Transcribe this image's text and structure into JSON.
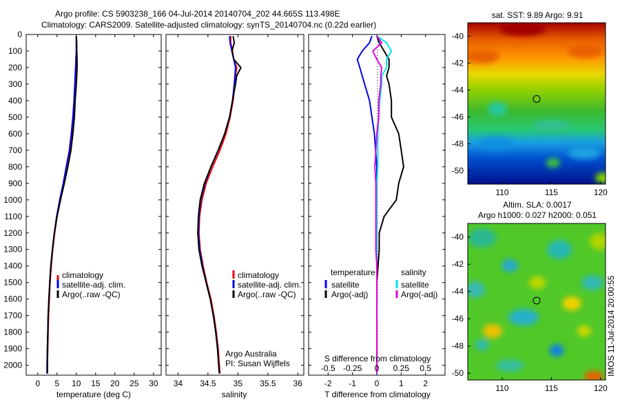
{
  "header": {
    "line1": "Argo profile: CS 5903238_166 04-Jul-2014 20140704_202 44.665S 113.498E",
    "line2": "Climatology: CARS2009. Satellite-adjusted climatology: synTS_20140704.nc (0.22d earlier)"
  },
  "side_label": "IMOS 11-Jul-2014 20:00:55",
  "colors": {
    "climatology": "#ee0000",
    "satellite": "#0000ee",
    "argo": "#000000",
    "satellite_salinity": "#00e5e5",
    "argo_salinity": "#e000e0"
  },
  "chart_data": [
    {
      "type": "line",
      "name": "temperature",
      "xlabel": "temperature (deg C)",
      "ylabel": "",
      "xlim": [
        -3,
        32
      ],
      "ylim": [
        2060,
        0
      ],
      "y_inverted": true,
      "xticks": [
        0,
        5,
        10,
        15,
        20,
        25,
        30
      ],
      "yticks": [
        0,
        100,
        200,
        300,
        400,
        500,
        600,
        700,
        800,
        900,
        1000,
        1100,
        1200,
        1300,
        1400,
        1500,
        1600,
        1700,
        1800,
        1900,
        2000
      ],
      "legend": [
        "climatology",
        "satellite-adj. clim.",
        "Argo(..raw -QC)"
      ],
      "legend_placement": "center-right",
      "depth": [
        10,
        50,
        100,
        150,
        200,
        250,
        300,
        400,
        500,
        600,
        700,
        800,
        900,
        1000,
        1100,
        1200,
        1300,
        1400,
        1500,
        1600,
        1700,
        1800,
        1900,
        2000,
        2050
      ],
      "series": [
        {
          "name": "climatology",
          "values": [
            10.0,
            10.0,
            10.0,
            9.9,
            9.9,
            9.8,
            9.7,
            9.5,
            9.3,
            8.9,
            8.4,
            7.6,
            6.8,
            5.9,
            5.0,
            4.4,
            3.9,
            3.5,
            3.2,
            3.0,
            2.8,
            2.7,
            2.6,
            2.5,
            2.5
          ]
        },
        {
          "name": "satellite-adj. clim.",
          "values": [
            10.0,
            10.0,
            10.0,
            9.9,
            9.8,
            9.7,
            9.6,
            9.4,
            9.1,
            8.7,
            8.2,
            7.4,
            6.6,
            5.7,
            4.9,
            4.3,
            3.8,
            3.4,
            3.1,
            2.9,
            2.7,
            2.6,
            2.5,
            2.4,
            2.4
          ]
        },
        {
          "name": "Argo(..raw -QC)",
          "values": [
            10.0,
            10.1,
            10.1,
            10.2,
            10.2,
            10.1,
            10.0,
            9.7,
            9.5,
            9.1,
            8.6,
            7.8,
            6.9,
            5.9,
            5.0,
            4.3,
            3.8,
            3.4,
            3.1,
            2.9,
            2.7,
            2.6,
            2.5,
            2.5,
            2.5
          ]
        }
      ]
    },
    {
      "type": "line",
      "name": "salinity",
      "xlabel": "salinity",
      "ylabel": "",
      "xlim": [
        33.8,
        36.1
      ],
      "ylim": [
        2060,
        0
      ],
      "y_inverted": true,
      "xticks": [
        34,
        34.5,
        35,
        35.5,
        36
      ],
      "legend": [
        "climatology",
        "satellite-adj. clim.",
        "Argo(..raw -QC)"
      ],
      "legend_placement": "center-right",
      "annotation": [
        "Argo Australia",
        "PI: Susan Wijffels"
      ],
      "depth": [
        10,
        50,
        100,
        150,
        200,
        250,
        300,
        400,
        500,
        600,
        700,
        800,
        900,
        1000,
        1100,
        1200,
        1300,
        1400,
        1500,
        1600,
        1700,
        1800,
        1900,
        2000,
        2050
      ],
      "series": [
        {
          "name": "climatology",
          "values": [
            34.88,
            34.88,
            34.91,
            34.93,
            34.98,
            34.96,
            34.95,
            34.92,
            34.87,
            34.8,
            34.7,
            34.58,
            34.47,
            34.4,
            34.36,
            34.35,
            34.37,
            34.42,
            34.48,
            34.55,
            34.6,
            34.64,
            34.67,
            34.69,
            34.7
          ]
        },
        {
          "name": "satellite-adj. clim.",
          "values": [
            34.86,
            34.87,
            34.9,
            34.93,
            34.96,
            34.95,
            34.94,
            34.91,
            34.86,
            34.78,
            34.67,
            34.55,
            34.45,
            34.38,
            34.35,
            34.34,
            34.36,
            34.41,
            34.47,
            34.54,
            34.59,
            34.63,
            34.66,
            34.68,
            34.69
          ]
        },
        {
          "name": "Argo(..raw -QC)",
          "values": [
            34.92,
            34.94,
            34.9,
            34.93,
            35.05,
            34.98,
            34.96,
            34.91,
            34.86,
            34.78,
            34.67,
            34.55,
            34.44,
            34.37,
            34.34,
            34.33,
            34.35,
            34.4,
            34.47,
            34.54,
            34.59,
            34.63,
            34.66,
            34.68,
            34.69
          ]
        }
      ]
    },
    {
      "type": "line",
      "name": "difference from climatology",
      "xlabel": "T difference from climatology",
      "xlabel_top": "S difference from climatology",
      "xlim": [
        -2.8,
        2.8
      ],
      "ylim": [
        2060,
        0
      ],
      "y_inverted": true,
      "xticks_T": [
        -2,
        -1,
        0,
        1,
        2
      ],
      "xticks_T_labels": [
        "-2",
        "-1",
        "0",
        "1",
        "2"
      ],
      "xticks_S": [
        -0.5,
        -0.25,
        0,
        0.25,
        0.5
      ],
      "xticks_S_labels": [
        "-0.5",
        "-0.25",
        "0",
        "0.25",
        "0.5"
      ],
      "legend_groups": [
        {
          "title": "temperature",
          "entries": [
            "satellite",
            "Argo(-adj)"
          ]
        },
        {
          "title": "salinity",
          "entries": [
            "satellite",
            "Argo(-adj)"
          ]
        }
      ],
      "legend_placement": "lower-center",
      "depth": [
        10,
        50,
        100,
        150,
        200,
        250,
        300,
        400,
        500,
        600,
        700,
        800,
        900,
        1000,
        1100,
        1200,
        1300,
        1400,
        1500,
        1600,
        1700,
        1800,
        1900,
        2000,
        2050
      ],
      "series": [
        {
          "name": "temperature satellite",
          "values": [
            -0.2,
            -0.3,
            -0.6,
            -0.8,
            -0.7,
            -0.6,
            -0.5,
            -0.3,
            -0.2,
            -0.1,
            -0.05,
            0,
            0,
            0,
            0,
            0,
            0,
            0,
            0,
            0,
            0,
            0,
            0,
            0,
            0
          ]
        },
        {
          "name": "temperature Argo(-adj)",
          "values": [
            0.0,
            0.1,
            0.3,
            0.5,
            0.5,
            0.4,
            0.5,
            0.6,
            0.6,
            0.9,
            1.0,
            1.1,
            0.9,
            0.8,
            0.3,
            0.1,
            0.1,
            0.05,
            0,
            0,
            0,
            0,
            0,
            0,
            0
          ]
        },
        {
          "name": "salinity satellite",
          "values": [
            0.0,
            0.1,
            0.15,
            0.1,
            0.1,
            0.05,
            0.05,
            0.03,
            0.02,
            0.01,
            0.01,
            0.01,
            0.0,
            0.0,
            0.0,
            0.0,
            0.0,
            0.0,
            0.0,
            0.0,
            0.0,
            0.0,
            0.0,
            0.0,
            0.0
          ]
        },
        {
          "name": "salinity Argo(-adj)",
          "values": [
            0.0,
            0.05,
            -0.04,
            0.0,
            0.05,
            0.04,
            0.04,
            0.02,
            0.02,
            0.0,
            -0.01,
            -0.02,
            -0.01,
            -0.01,
            -0.01,
            -0.01,
            -0.01,
            0.0,
            0.0,
            0.0,
            0.0,
            0.0,
            0.0,
            0.0,
            0.0
          ]
        }
      ]
    },
    {
      "type": "heatmap",
      "name": "SST map",
      "title": "sat. SST: 9.89 Argo: 9.91",
      "xlim": [
        106.5,
        120.5
      ],
      "ylim": [
        -51,
        -39
      ],
      "xticks": [
        110,
        115,
        120
      ],
      "yticks": [
        -40,
        -42,
        -44,
        -46,
        -48,
        -50
      ],
      "marker": {
        "lon": 113.5,
        "lat": -44.665
      }
    },
    {
      "type": "heatmap",
      "name": "SLA map",
      "title": "Altim. SLA: 0.0017",
      "subtitle": "Argo h1000: 0.027 h2000: 0.051",
      "xlim": [
        106.5,
        120.5
      ],
      "ylim": [
        -50.5,
        -39
      ],
      "xticks": [
        110,
        115,
        120
      ],
      "yticks": [
        -40,
        -42,
        -44,
        -46,
        -48,
        -50
      ],
      "marker": {
        "lon": 113.5,
        "lat": -44.665
      }
    }
  ]
}
